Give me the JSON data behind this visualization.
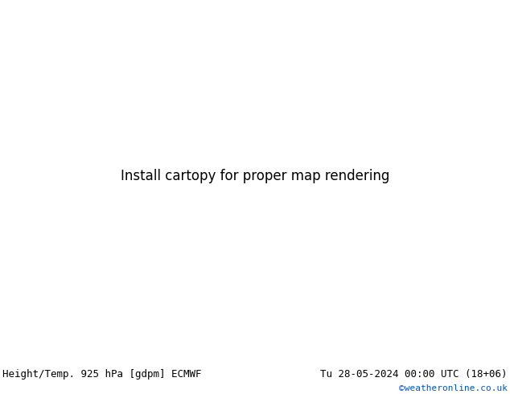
{
  "title_left": "Height/Temp. 925 hPa [gdpm] ECMWF",
  "title_right": "Tu 28-05-2024 00:00 UTC (18+06)",
  "credit": "©weatheronline.co.uk",
  "credit_color": "#0055cc",
  "bg_color": "#c8d0dc",
  "ocean_color": "#c8d0dc",
  "land_color": "#c8c8c8",
  "australia_color": "#b8e890",
  "nz_color": "#b8e890",
  "text_color": "#000000",
  "font_size_title": 9,
  "font_size_credit": 8,
  "figsize": [
    6.34,
    4.9
  ],
  "dpi": 100,
  "map_lon_min": 60,
  "map_lon_max": 210,
  "map_lat_min": -72,
  "map_lat_max": 30,
  "height_color": "#000000",
  "temp_orange_color": "#ff8800",
  "temp_red_color": "#ff0000",
  "temp_cyan_color": "#00bbbb",
  "temp_green_color": "#00bb00"
}
